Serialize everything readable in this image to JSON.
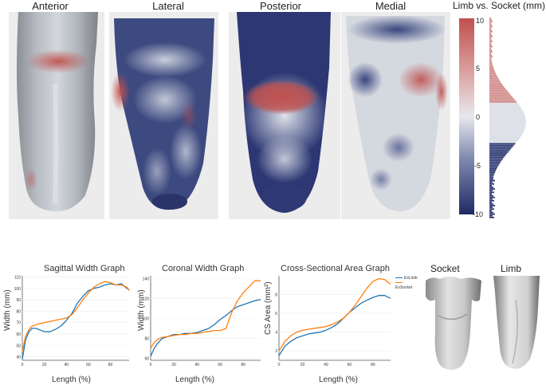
{
  "views": {
    "anterior": "Anterior",
    "lateral": "Lateral",
    "posterior": "Posterior",
    "medial": "Medial"
  },
  "colorbar": {
    "title": "Limb vs. Socket (mm)",
    "ticks": [
      "10",
      "5",
      "0",
      "-5",
      "-10"
    ],
    "colors": {
      "positive": "#c0504d",
      "neutral": "#dfe3ea",
      "negative": "#1f2a63"
    }
  },
  "chart_data": [
    {
      "type": "line",
      "title": "Sagittal Width Graph",
      "xlabel": "Length (%)",
      "ylabel": "Width (mm)",
      "xlim": [
        0,
        97
      ],
      "ylim": [
        37,
        111
      ],
      "xticks": [
        "0",
        "20",
        "40",
        "60",
        "80"
      ],
      "yticks": [
        "40",
        "50",
        "60",
        "70",
        "80",
        "90",
        "100",
        "110"
      ],
      "series": [
        {
          "color": "#1f77b4",
          "x": [
            0,
            3,
            6,
            9,
            12,
            15,
            20,
            25,
            30,
            35,
            40,
            45,
            50,
            55,
            60,
            65,
            70,
            75,
            80,
            85,
            90,
            95,
            97
          ],
          "y": [
            38,
            55,
            62,
            65,
            65,
            64,
            62,
            62,
            64,
            67,
            72,
            78,
            87,
            93,
            98,
            100,
            101,
            103,
            104,
            103,
            104,
            100,
            99
          ]
        },
        {
          "color": "#ff7f0e",
          "x": [
            0,
            3,
            6,
            9,
            12,
            15,
            20,
            25,
            30,
            35,
            40,
            45,
            50,
            55,
            60,
            65,
            70,
            75,
            80,
            85,
            90,
            95,
            97
          ],
          "y": [
            45,
            58,
            64,
            67,
            68,
            69,
            70,
            71,
            72,
            73,
            74,
            77,
            83,
            90,
            96,
            101,
            104,
            106,
            105,
            103,
            103,
            101,
            98
          ]
        }
      ]
    },
    {
      "type": "line",
      "title": "Coronal Width Graph",
      "xlabel": "Length (%)",
      "ylabel": "Width (mm)",
      "xlim": [
        0,
        95
      ],
      "ylim": [
        58,
        143
      ],
      "xticks": [
        "0",
        "20",
        "40",
        "60",
        "80"
      ],
      "yticks": [
        "60",
        "80",
        "100",
        "120",
        "140"
      ],
      "series": [
        {
          "color": "#1f77b4",
          "x": [
            0,
            3,
            6,
            10,
            15,
            20,
            25,
            30,
            35,
            40,
            45,
            50,
            55,
            60,
            65,
            70,
            75,
            80,
            85,
            90,
            95
          ],
          "y": [
            62,
            70,
            75,
            80,
            82,
            84,
            84,
            85,
            85,
            86,
            88,
            90,
            94,
            99,
            103,
            108,
            112,
            114,
            116,
            118,
            119
          ]
        },
        {
          "color": "#ff7f0e",
          "x": [
            0,
            3,
            6,
            10,
            15,
            20,
            25,
            30,
            35,
            40,
            45,
            50,
            55,
            60,
            65,
            70,
            75,
            80,
            85,
            90,
            95
          ],
          "y": [
            70,
            76,
            79,
            81,
            82,
            83,
            84,
            84,
            85,
            85,
            86,
            87,
            88,
            88,
            90,
            106,
            118,
            126,
            132,
            138,
            138
          ]
        }
      ]
    },
    {
      "type": "line",
      "title": "Cross-Sectional Area Graph",
      "xlabel": "Length (%)",
      "ylabel": "CS Area (mm²)",
      "xlim": [
        0,
        95
      ],
      "ylim": [
        1,
        10
      ],
      "xticks": [
        "0",
        "20",
        "40",
        "60",
        "80"
      ],
      "yticks": [
        "2",
        "4",
        "6",
        "8"
      ],
      "legend": [
        "ExLimb",
        "ExSocket"
      ],
      "series": [
        {
          "name": "ExLimb",
          "color": "#1f77b4",
          "x": [
            0,
            5,
            10,
            15,
            20,
            25,
            30,
            35,
            40,
            45,
            50,
            55,
            60,
            65,
            70,
            75,
            80,
            85,
            90,
            95
          ],
          "y": [
            1.5,
            2.5,
            3,
            3.4,
            3.6,
            3.8,
            3.9,
            4,
            4.2,
            4.5,
            4.9,
            5.5,
            6.1,
            6.6,
            7.1,
            7.4,
            7.7,
            7.9,
            7.9,
            7.6
          ]
        },
        {
          "name": "ExSocket",
          "color": "#ff7f0e",
          "x": [
            0,
            5,
            10,
            15,
            20,
            25,
            30,
            35,
            40,
            45,
            50,
            55,
            60,
            65,
            70,
            75,
            80,
            85,
            90,
            95
          ],
          "y": [
            2,
            3,
            3.6,
            4,
            4.2,
            4.3,
            4.4,
            4.5,
            4.6,
            4.8,
            5.1,
            5.5,
            6.1,
            6.9,
            7.8,
            8.7,
            9.4,
            9.7,
            9.6,
            9.1
          ]
        }
      ]
    }
  ],
  "socket_limb": {
    "socket": "Socket",
    "limb": "Limb"
  }
}
